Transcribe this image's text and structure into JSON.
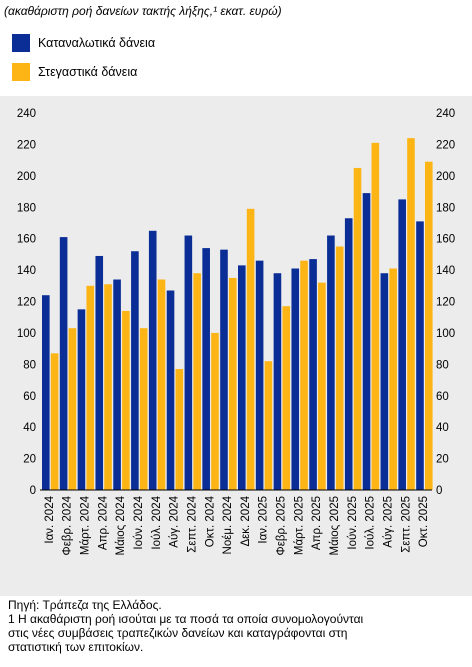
{
  "subtitle": "(ακαθάριστη ροή δανείων τακτής λήξης,¹ εκατ. ευρώ)",
  "colors": {
    "consumer": "#0a2d96",
    "housing": "#fcb514",
    "background": "#ececec"
  },
  "notes": {
    "source": "Πηγή: Τράπεζα της Ελλάδος.",
    "footnote_line1": "1 Η ακαθάριστη ροή ισούται με τα ποσά τα οποία συνομολογούνται",
    "footnote_line2": "στις νέες συμβάσεις τραπεζικών δανείων και καταγράφονται στη",
    "footnote_line3": "στατιστική των επιτοκίων."
  },
  "chart_data": {
    "type": "bar",
    "title": "",
    "xlabel": "",
    "ylabel": "",
    "ylim": [
      0,
      240
    ],
    "yticks": [
      0,
      20,
      40,
      60,
      80,
      100,
      120,
      140,
      160,
      180,
      200,
      220,
      240
    ],
    "y_axis_sides": "left and right",
    "grid": false,
    "legend_position": "top-left",
    "categories": [
      "Ιαν. 2024",
      "Φεβρ. 2024",
      "Μάρτ. 2024",
      "Απρ. 2024",
      "Μάιος 2024",
      "Ιούν. 2024",
      "Ιούλ. 2024",
      "Αύγ. 2024",
      "Σεπτ. 2024",
      "Οκτ. 2024",
      "Νοέμ. 2024",
      "Δεκ. 2024",
      "Ιαν. 2025",
      "Φεβρ. 2025",
      "Μάρτ. 2025",
      "Απρ. 2025",
      "Μάιος 2025",
      "Ιούν. 2025",
      "Ιούλ. 2025",
      "Αύγ. 2025",
      "Σεπτ. 2025",
      "Οκτ. 2025"
    ],
    "series": [
      {
        "name": "Καταναλωτικά δάνεια",
        "values": [
          124,
          161,
          115,
          149,
          134,
          152,
          165,
          127,
          162,
          154,
          153,
          143,
          146,
          138,
          141,
          147,
          162,
          173,
          189,
          138,
          185,
          171
        ]
      },
      {
        "name": "Στεγαστικά δάνεια",
        "values": [
          87,
          103,
          130,
          131,
          114,
          103,
          134,
          77,
          138,
          100,
          135,
          179,
          82,
          117,
          146,
          132,
          155,
          205,
          221,
          141,
          224,
          209
        ]
      }
    ]
  }
}
